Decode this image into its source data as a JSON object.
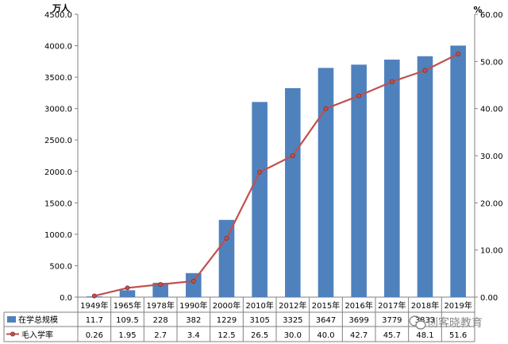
{
  "chart_data": {
    "type": "bar",
    "categories": [
      "1949年",
      "1965年",
      "1978年",
      "1990年",
      "2000年",
      "2010年",
      "2012年",
      "2015年",
      "2016年",
      "2017年",
      "2018年",
      "2019年"
    ],
    "series": [
      {
        "name": "在学总规模",
        "type": "bar",
        "axis": "left",
        "color": "#4F81BD",
        "values": [
          11.7,
          109.5,
          228,
          382,
          1229,
          3105,
          3325,
          3647,
          3699,
          3779,
          3833,
          4002
        ],
        "labels": [
          "11.7",
          "109.5",
          "228",
          "382",
          "1229",
          "3105",
          "3325",
          "3647",
          "3699",
          "3779",
          "3833",
          ""
        ]
      },
      {
        "name": "毛入学率",
        "type": "line",
        "axis": "right",
        "color": "#C0504D",
        "values": [
          0.26,
          1.95,
          2.7,
          3.4,
          12.5,
          26.5,
          30.0,
          40.0,
          42.7,
          45.7,
          48.1,
          51.6
        ],
        "labels": [
          "0.26",
          "1.95",
          "2.7",
          "3.4",
          "12.5",
          "26.5",
          "30.0",
          "40.0",
          "42.7",
          "45.7",
          "48.1",
          "51.6"
        ]
      }
    ],
    "y_left": {
      "unit": "万人",
      "range": [
        0,
        4500
      ],
      "ticks": [
        "0.0",
        "500.0",
        "1000.0",
        "1500.0",
        "2000.0",
        "2500.0",
        "3000.0",
        "3500.0",
        "4000.0",
        "4500.0"
      ]
    },
    "y_right": {
      "unit": "%",
      "range": [
        0,
        60
      ],
      "ticks": [
        "0.00",
        "10.00",
        "20.00",
        "30.00",
        "40.00",
        "50.00",
        "60.00"
      ]
    },
    "grid": false,
    "legend": "data-table"
  },
  "watermark": {
    "text": "创客晓教育",
    "icon": "wechat-icon"
  }
}
